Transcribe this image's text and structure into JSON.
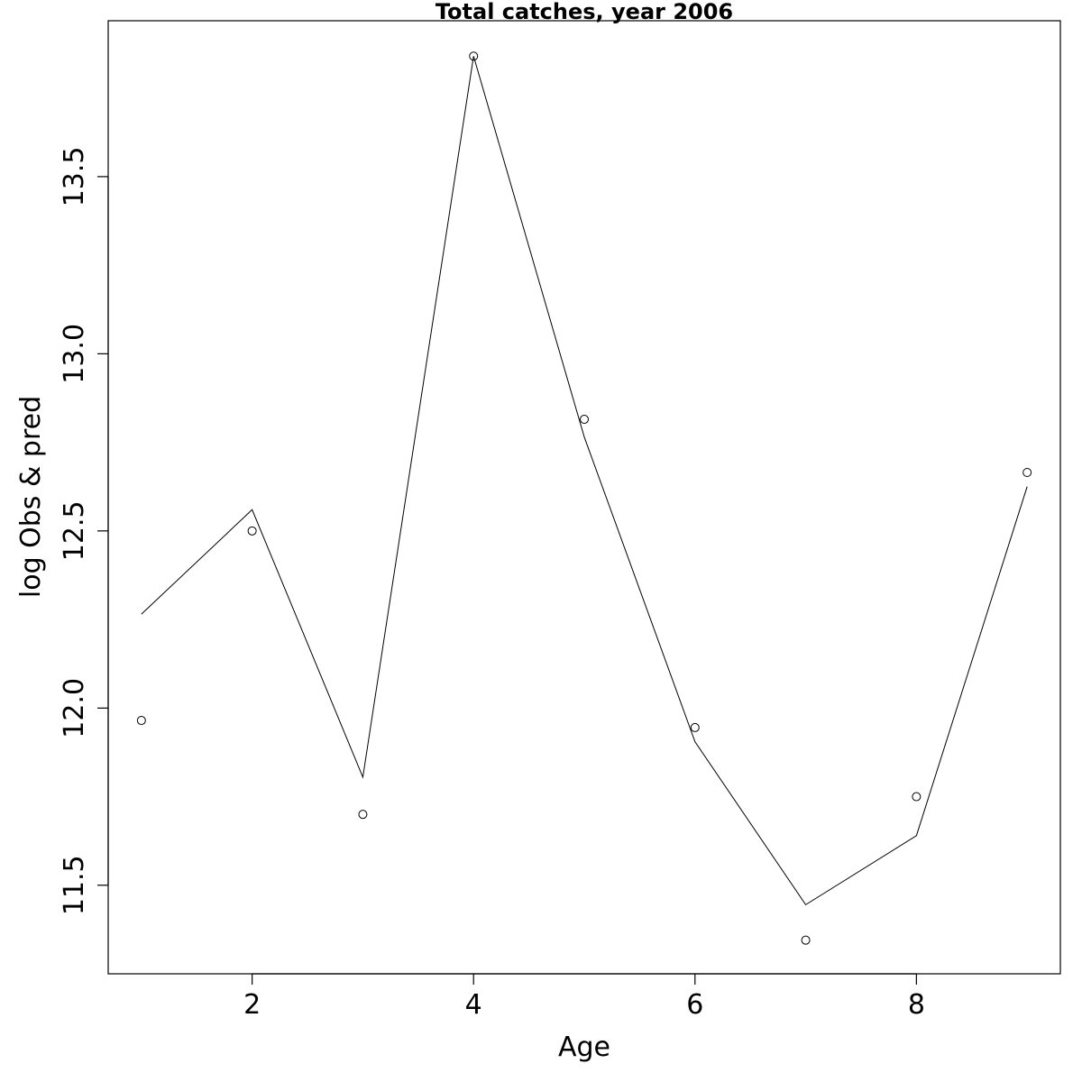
{
  "chart_data": {
    "type": "scatter",
    "title": "Total catches, year 2006",
    "xlabel": "Age",
    "ylabel": "log Obs & pred",
    "xlim": [
      0.7,
      9.3
    ],
    "ylim": [
      11.25,
      13.94
    ],
    "x_ticks": [
      2,
      4,
      6,
      8
    ],
    "x_tick_labels": [
      "2",
      "4",
      "6",
      "8"
    ],
    "y_ticks": [
      11.5,
      12.0,
      12.5,
      13.0,
      13.5
    ],
    "y_tick_labels": [
      "11.5",
      "12.0",
      "12.5",
      "13.0",
      "13.5"
    ],
    "grid": false,
    "legend": "none",
    "series": [
      {
        "style": "points",
        "x": [
          1,
          2,
          3,
          4,
          5,
          6,
          7,
          8,
          9
        ],
        "values": [
          11.965,
          12.5,
          11.7,
          13.84,
          12.815,
          11.945,
          11.345,
          11.75,
          12.665
        ]
      },
      {
        "style": "line",
        "x": [
          1,
          2,
          3,
          4,
          5,
          6,
          7,
          8,
          9
        ],
        "values": [
          12.265,
          12.56,
          11.805,
          13.84,
          12.765,
          11.905,
          11.445,
          11.64,
          12.625
        ]
      }
    ]
  }
}
